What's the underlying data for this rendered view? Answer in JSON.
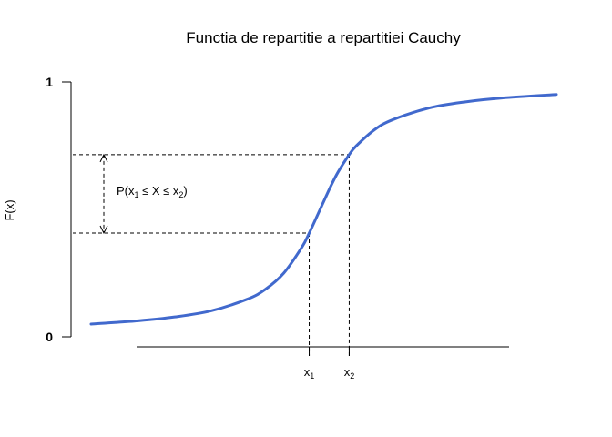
{
  "chart_data": {
    "type": "line",
    "title": "Functia de repartitie a repartitiei Cauchy",
    "ylabel": "F(x)",
    "xlabel": "",
    "xlim": [
      -6.3,
      6.5
    ],
    "ylim": [
      0,
      1
    ],
    "y_ticks": [
      "0",
      "1"
    ],
    "x_markers": [
      {
        "main": "x",
        "sub": "1",
        "value": -0.3
      },
      {
        "main": "x",
        "sub": "2",
        "value": 0.8
      }
    ],
    "interval_annotation": {
      "prefix": "P(x",
      "sub1": "1",
      "middle": " ≤ X ≤ x",
      "sub2": "2",
      "suffix": ")"
    },
    "series": [
      {
        "color": "#4169CD",
        "x": [
          -6.3,
          -5.0,
          -4.0,
          -3.0,
          -2.0,
          -1.5,
          -1.0,
          -0.5,
          -0.3,
          0.0,
          0.3,
          0.5,
          0.8,
          1.0,
          1.5,
          2.0,
          3.0,
          4.0,
          5.0,
          6.5
        ],
        "y": [
          0.05,
          0.063,
          0.078,
          0.102,
          0.148,
          0.187,
          0.25,
          0.352,
          0.407,
          0.5,
          0.593,
          0.648,
          0.715,
          0.75,
          0.813,
          0.852,
          0.898,
          0.922,
          0.937,
          0.951
        ]
      }
    ]
  }
}
